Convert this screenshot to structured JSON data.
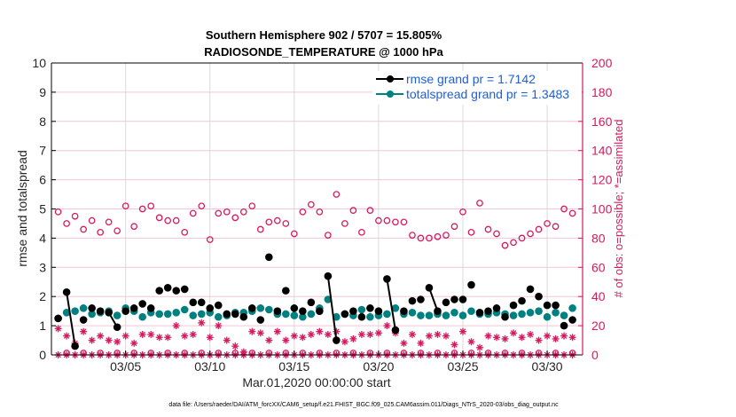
{
  "chart_data": {
    "type": "line",
    "title": [
      "Southern Hemisphere 902 / 5707 = 15.805%",
      "RADIOSONDE_TEMPERATURE @ 1000 hPa"
    ],
    "xlabel": "Mar.01,2020 00:00:00 start",
    "ylabel": "rmse and totalspread",
    "ylabel_right": "# of obs: o=possible; *=assimilated",
    "ylim": [
      0,
      10
    ],
    "ylim_right": [
      0,
      200
    ],
    "xlim_days": [
      -0.4,
      31.1
    ],
    "yticks": [
      "0",
      "1",
      "2",
      "3",
      "4",
      "5",
      "6",
      "7",
      "8",
      "9",
      "10"
    ],
    "yticks_right": [
      "0",
      "20",
      "40",
      "60",
      "80",
      "100",
      "120",
      "140",
      "160",
      "180",
      "200"
    ],
    "xticks": [
      {
        "day": 4,
        "label": "03/05"
      },
      {
        "day": 9,
        "label": "03/10"
      },
      {
        "day": 14,
        "label": "03/15"
      },
      {
        "day": 19,
        "label": "03/20"
      },
      {
        "day": 24,
        "label": "03/25"
      },
      {
        "day": 29,
        "label": "03/30"
      }
    ],
    "grid": true,
    "legend_position": "top-right",
    "legend": [
      {
        "name": "rmse grand pr = 1.7142",
        "color": "#000000"
      },
      {
        "name": "totalspread grand pr = 1.3483",
        "color": "#008080"
      }
    ],
    "colors": {
      "rmse": "#000000",
      "spread": "#008080",
      "obs": "#d6195e",
      "grid": "#f2c6d6",
      "vgrid": "#d9d9d9"
    },
    "days": [
      0,
      0.5,
      1,
      1.5,
      2,
      2.5,
      3,
      3.5,
      4,
      4.5,
      5,
      5.5,
      6,
      6.5,
      7,
      7.5,
      8,
      8.5,
      9,
      9.5,
      10,
      10.5,
      11,
      11.5,
      12,
      12.5,
      13,
      13.5,
      14,
      14.5,
      15,
      15.5,
      16,
      16.5,
      17,
      17.5,
      18,
      18.5,
      19,
      19.5,
      20,
      20.5,
      21,
      21.5,
      22,
      22.5,
      23,
      23.5,
      24,
      24.5,
      25,
      25.5,
      26,
      26.5,
      27,
      27.5,
      28,
      28.5,
      29,
      29.5,
      30,
      30.5
    ],
    "rmse": [
      1.25,
      2.15,
      0.3,
      1.2,
      1.6,
      1.5,
      1.45,
      0.95,
      1.5,
      1.6,
      1.75,
      1.6,
      2.2,
      2.3,
      2.2,
      2.25,
      1.8,
      1.8,
      1.6,
      1.7,
      1.4,
      1.4,
      1.3,
      1.6,
      1.2,
      3.35,
      1.5,
      2.2,
      1.6,
      1.5,
      1.8,
      1.5,
      2.7,
      0.5,
      1.4,
      1.5,
      1.3,
      1.6,
      1.5,
      2.6,
      0.85,
      1.5,
      1.85,
      1.9,
      2.3,
      1.5,
      1.8,
      1.9,
      1.9,
      2.4,
      1.45,
      1.5,
      1.6,
      1.3,
      1.7,
      1.85,
      2.25,
      2.0,
      1.7,
      1.7,
      1.0,
      1.2
    ],
    "spread": [
      1.25,
      1.45,
      1.5,
      1.6,
      1.4,
      1.45,
      1.5,
      1.35,
      1.6,
      1.5,
      1.3,
      1.45,
      1.4,
      1.4,
      1.45,
      1.55,
      1.35,
      1.4,
      1.45,
      1.3,
      1.35,
      1.45,
      1.45,
      1.5,
      1.6,
      1.55,
      1.4,
      1.4,
      1.35,
      1.3,
      1.4,
      1.6,
      1.9,
      1.3,
      1.4,
      1.35,
      1.55,
      1.3,
      1.35,
      1.4,
      1.6,
      1.4,
      1.45,
      1.35,
      1.35,
      1.4,
      1.35,
      1.45,
      1.35,
      1.5,
      1.4,
      1.4,
      1.45,
      1.4,
      1.35,
      1.4,
      1.45,
      1.5,
      1.3,
      1.45,
      1.35,
      1.6
    ],
    "obs_possible": [
      98,
      90,
      95,
      86,
      92,
      84,
      91,
      85,
      102,
      88,
      100,
      102,
      94,
      92,
      92,
      84,
      97,
      102,
      79,
      97,
      98,
      94,
      98,
      102,
      86,
      91,
      92,
      90,
      83,
      98,
      103,
      98,
      82,
      110,
      90,
      99,
      84,
      99,
      92,
      92,
      91,
      91,
      82,
      80,
      80,
      81,
      82,
      88,
      98,
      84,
      104,
      86,
      83,
      75,
      77,
      80,
      83,
      86,
      90,
      88,
      100,
      97
    ],
    "obs_assimilated": [
      18,
      13,
      8,
      16,
      10,
      13,
      10,
      9,
      13,
      8,
      14,
      14,
      12,
      12,
      20,
      13,
      14,
      22,
      12,
      20,
      10,
      6,
      2,
      16,
      15,
      10,
      16,
      10,
      13,
      12,
      14,
      16,
      14,
      16,
      9,
      11,
      14,
      14,
      15,
      20,
      15,
      8,
      14,
      8,
      13,
      14,
      13,
      7,
      16,
      9,
      5,
      13,
      12,
      11,
      15,
      12,
      14,
      10,
      13,
      11,
      13,
      12
    ],
    "obs_zero_markers": true
  },
  "footer": "data file: /Users/raeder/DAI/ATM_forcXX/CAM6_setup/f.e21.FHIST_BGC.f09_025.CAM6assim.011/Diags_NTrS_2020-03/obs_diag_output.nc"
}
